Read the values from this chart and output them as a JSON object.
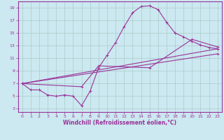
{
  "xlabel": "Windchill (Refroidissement éolien,°C)",
  "bg_color": "#cce8f0",
  "grid_color": "#aacccc",
  "line_color": "#993399",
  "spine_color": "#993399",
  "xlim": [
    -0.5,
    23.5
  ],
  "ylim": [
    2.5,
    20
  ],
  "yticks": [
    3,
    5,
    7,
    9,
    11,
    13,
    15,
    17,
    19
  ],
  "xticks": [
    0,
    1,
    2,
    3,
    4,
    5,
    6,
    7,
    8,
    9,
    10,
    11,
    12,
    13,
    14,
    15,
    16,
    17,
    18,
    19,
    20,
    21,
    22,
    23
  ],
  "line1_x": [
    0,
    1,
    2,
    3,
    4,
    5,
    6,
    7,
    8,
    9,
    10,
    11,
    12,
    13,
    14,
    15,
    16,
    17,
    18,
    19,
    20,
    21,
    22,
    23
  ],
  "line1_y": [
    7,
    6,
    6,
    5.2,
    5.0,
    5.2,
    5.0,
    3.5,
    5.8,
    9.5,
    11.5,
    13.5,
    16.0,
    18.2,
    19.2,
    19.3,
    18.7,
    16.7,
    15.0,
    14.4,
    13.7,
    13.1,
    12.7,
    12.5
  ],
  "line2_x": [
    0,
    23
  ],
  "line2_y": [
    7.0,
    12.5
  ],
  "line3_x": [
    0,
    23
  ],
  "line3_y": [
    7.0,
    11.7
  ],
  "line4_x": [
    0,
    7,
    9,
    15,
    20,
    23
  ],
  "line4_y": [
    7.0,
    6.5,
    9.8,
    9.5,
    14.0,
    12.8
  ]
}
